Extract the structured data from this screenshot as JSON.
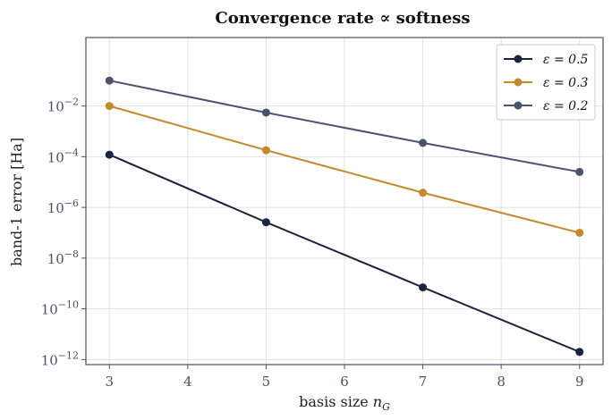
{
  "chart_data": {
    "type": "line",
    "title": "Convergence rate ∝ softness",
    "xlabel": "basis size n_G",
    "xlabel_main": "basis size ",
    "xlabel_var": "n",
    "xlabel_sub": "G",
    "ylabel": "band-1 error  [Ha]",
    "y_scale": "log",
    "xlim": [
      2.7,
      9.3
    ],
    "ylim_log10": [
      -12.2,
      0.7
    ],
    "x_ticks": [
      3,
      4,
      5,
      6,
      7,
      8,
      9
    ],
    "y_ticks": [
      {
        "exp": -12,
        "base": "10",
        "sup": "−12"
      },
      {
        "exp": -10,
        "base": "10",
        "sup": "−10"
      },
      {
        "exp": -8,
        "base": "10",
        "sup": "−8"
      },
      {
        "exp": -6,
        "base": "10",
        "sup": "−6"
      },
      {
        "exp": -4,
        "base": "10",
        "sup": "−4"
      },
      {
        "exp": -2,
        "base": "10",
        "sup": "−2"
      }
    ],
    "grid": true,
    "legend_position": "top-right",
    "series": [
      {
        "name": "ε = 0.5",
        "color": "#1a2340",
        "x": [
          3,
          5,
          7,
          9
        ],
        "y": [
          0.00012,
          2.6e-07,
          7e-10,
          2e-12
        ]
      },
      {
        "name": "ε = 0.3",
        "color": "#c4892a",
        "x": [
          3,
          5,
          7,
          9
        ],
        "y": [
          0.01,
          0.00018,
          3.8e-06,
          1e-07
        ]
      },
      {
        "name": "ε = 0.2",
        "color": "#4a5370",
        "x": [
          3,
          5,
          7,
          9
        ],
        "y": [
          0.1,
          0.0055,
          0.00035,
          2.5e-05
        ]
      }
    ]
  }
}
